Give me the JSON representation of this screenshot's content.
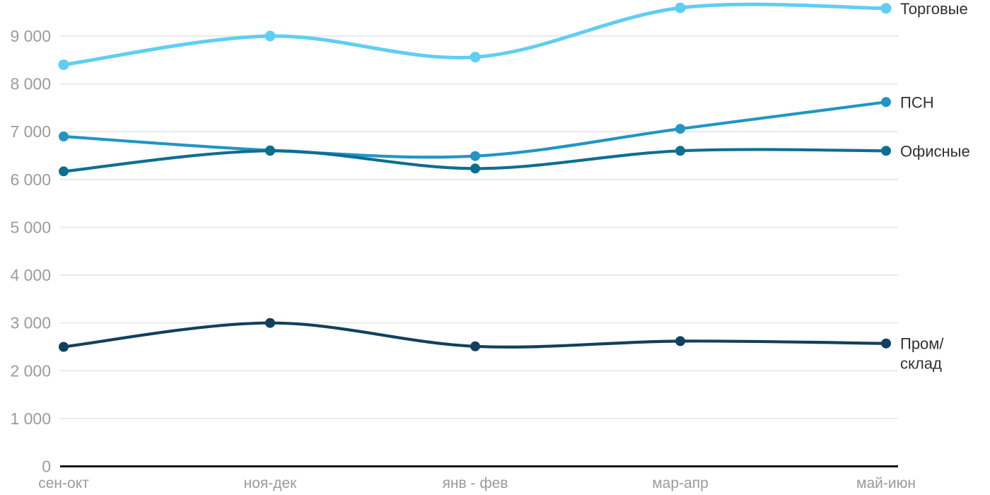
{
  "chart_data": {
    "type": "line",
    "title": "",
    "xlabel": "",
    "ylabel": "",
    "categories": [
      "сен-окт",
      "ноя-дек",
      "янв - фев",
      "мар-апр",
      "май-июн"
    ],
    "series": [
      {
        "name": "Торговые",
        "slug": "torgovye",
        "color": "#5fcef3",
        "values": [
          8400,
          9000,
          8560,
          9590,
          9580
        ],
        "legend_lines": [
          "Торговые"
        ]
      },
      {
        "name": "ПСН",
        "slug": "psn",
        "color": "#2196c5",
        "values": [
          6900,
          6610,
          6490,
          7060,
          7620
        ],
        "legend_lines": [
          "ПСН"
        ]
      },
      {
        "name": "Офисные",
        "slug": "ofisnye",
        "color": "#0e6e91",
        "values": [
          6170,
          6600,
          6230,
          6600,
          6600
        ],
        "legend_lines": [
          "Офисные"
        ]
      },
      {
        "name": "Пром/склад",
        "slug": "prom-sklad",
        "color": "#12405e",
        "values": [
          2500,
          3000,
          2510,
          2620,
          2570
        ],
        "legend_lines": [
          "Пром/",
          "склад"
        ]
      }
    ],
    "y_axis": {
      "min": 0,
      "max": 9000,
      "tick_step": 1000,
      "ticks": [
        0,
        1000,
        2000,
        3000,
        4000,
        5000,
        6000,
        7000,
        8000,
        9000
      ],
      "tick_labels": [
        "0",
        "1 000",
        "2 000",
        "3 000",
        "4 000",
        "5 000",
        "6 000",
        "7 000",
        "8 000",
        "9 000"
      ]
    },
    "grid": true,
    "legend_position": "right"
  },
  "colors": {
    "background": "#ffffff",
    "grid": "#e9e9e9",
    "axis_line": "#161616",
    "tick_text": "#9b9b9b",
    "legend_text": "#303030"
  }
}
